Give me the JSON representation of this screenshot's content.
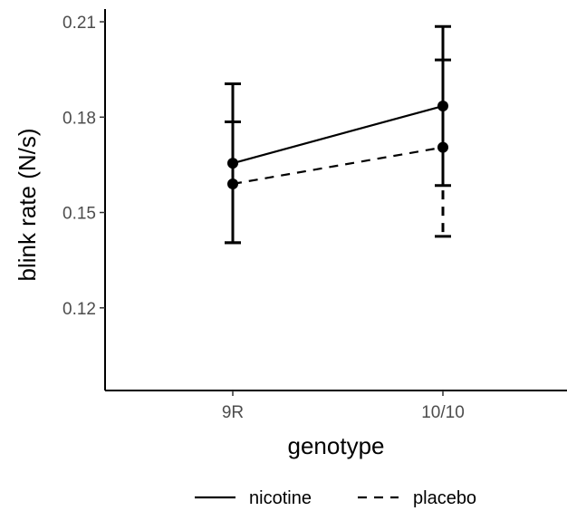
{
  "chart_data": {
    "type": "line",
    "xlabel": "genotype",
    "ylabel": "blink rate (N/s)",
    "categories": [
      "9R",
      "10/10"
    ],
    "yticks": [
      0.12,
      0.15,
      0.18,
      0.21
    ],
    "ytick_labels": [
      "0.12",
      "0.15",
      "0.18",
      "0.21"
    ],
    "ylim": [
      0.094,
      0.214
    ],
    "grid": false,
    "legend_position": "bottom",
    "series": [
      {
        "name": "nicotine",
        "line_style": "solid",
        "values": [
          0.1655,
          0.1835
        ],
        "error_low": [
          0.1405,
          0.1585
        ],
        "error_high": [
          0.1905,
          0.2085
        ]
      },
      {
        "name": "placebo",
        "line_style": "dashed",
        "values": [
          0.159,
          0.1705
        ],
        "error_low": [
          0.1405,
          0.1425
        ],
        "error_high": [
          0.1785,
          0.198
        ]
      }
    ],
    "colors": {
      "ink": "#000000",
      "tick_text": "#4d4d4d",
      "background": "#ffffff"
    }
  }
}
